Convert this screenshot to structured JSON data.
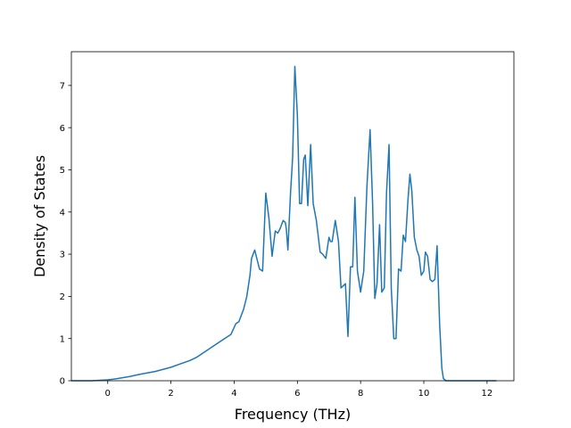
{
  "chart_data": {
    "type": "line",
    "xlabel": "Frequency (THz)",
    "ylabel": "Density of States",
    "xlim": [
      -1.15,
      12.85
    ],
    "ylim": [
      0,
      7.8
    ],
    "xticks": [
      0,
      2,
      4,
      6,
      8,
      10,
      12
    ],
    "yticks": [
      0,
      1,
      2,
      3,
      4,
      5,
      6,
      7
    ],
    "grid": false,
    "legend": "none",
    "colors": {
      "line": "#1f77b4",
      "axes": "#000000",
      "background": "#ffffff"
    },
    "series": [
      {
        "x": [
          -1.15,
          -0.5,
          0.0,
          0.3,
          0.7,
          1.0,
          1.5,
          2.0,
          2.3,
          2.6,
          2.8,
          3.0,
          3.2,
          3.4,
          3.6,
          3.8,
          3.9,
          4.05,
          4.15,
          4.3,
          4.4,
          4.5,
          4.55,
          4.65,
          4.7,
          4.8,
          4.9,
          5.0,
          5.1,
          5.2,
          5.3,
          5.38,
          5.45,
          5.55,
          5.62,
          5.65,
          5.7,
          5.78,
          5.85,
          5.92,
          6.0,
          6.07,
          6.13,
          6.2,
          6.25,
          6.33,
          6.42,
          6.5,
          6.6,
          6.72,
          6.8,
          6.9,
          7.0,
          7.05,
          7.1,
          7.2,
          7.3,
          7.38,
          7.45,
          7.52,
          7.6,
          7.68,
          7.75,
          7.82,
          7.9,
          8.0,
          8.1,
          8.2,
          8.3,
          8.38,
          8.45,
          8.52,
          8.6,
          8.67,
          8.75,
          8.82,
          8.9,
          8.97,
          9.05,
          9.12,
          9.2,
          9.28,
          9.35,
          9.42,
          9.5,
          9.56,
          9.62,
          9.7,
          9.78,
          9.85,
          9.92,
          10.0,
          10.05,
          10.12,
          10.2,
          10.27,
          10.35,
          10.42,
          10.5,
          10.57,
          10.62,
          10.7,
          10.78,
          10.83,
          10.88,
          10.93,
          11.0,
          11.1,
          11.3,
          11.6,
          12.3
        ],
        "y": [
          0,
          0,
          0.02,
          0.05,
          0.1,
          0.15,
          0.22,
          0.32,
          0.4,
          0.48,
          0.55,
          0.65,
          0.75,
          0.85,
          0.95,
          1.05,
          1.1,
          1.35,
          1.4,
          1.7,
          2.0,
          2.5,
          2.9,
          3.1,
          2.95,
          2.65,
          2.6,
          4.45,
          3.85,
          2.95,
          3.55,
          3.5,
          3.6,
          3.8,
          3.75,
          3.6,
          3.1,
          4.4,
          5.3,
          7.45,
          6.3,
          4.2,
          4.2,
          5.25,
          5.35,
          4.15,
          5.6,
          4.2,
          3.8,
          3.05,
          3.0,
          2.9,
          3.4,
          3.3,
          3.3,
          3.8,
          3.3,
          2.2,
          2.25,
          2.3,
          1.05,
          2.7,
          2.7,
          4.35,
          2.6,
          2.1,
          2.6,
          4.6,
          5.95,
          4.2,
          1.95,
          2.3,
          3.7,
          2.1,
          2.2,
          4.45,
          5.6,
          2.2,
          1.0,
          1.0,
          2.65,
          2.6,
          3.45,
          3.3,
          4.3,
          4.9,
          4.5,
          3.4,
          3.1,
          2.95,
          2.5,
          2.6,
          3.05,
          2.95,
          2.4,
          2.35,
          2.4,
          3.2,
          1.35,
          0.3,
          0.05,
          0,
          0,
          0,
          0,
          0,
          0,
          0,
          0,
          0,
          0
        ]
      }
    ]
  }
}
